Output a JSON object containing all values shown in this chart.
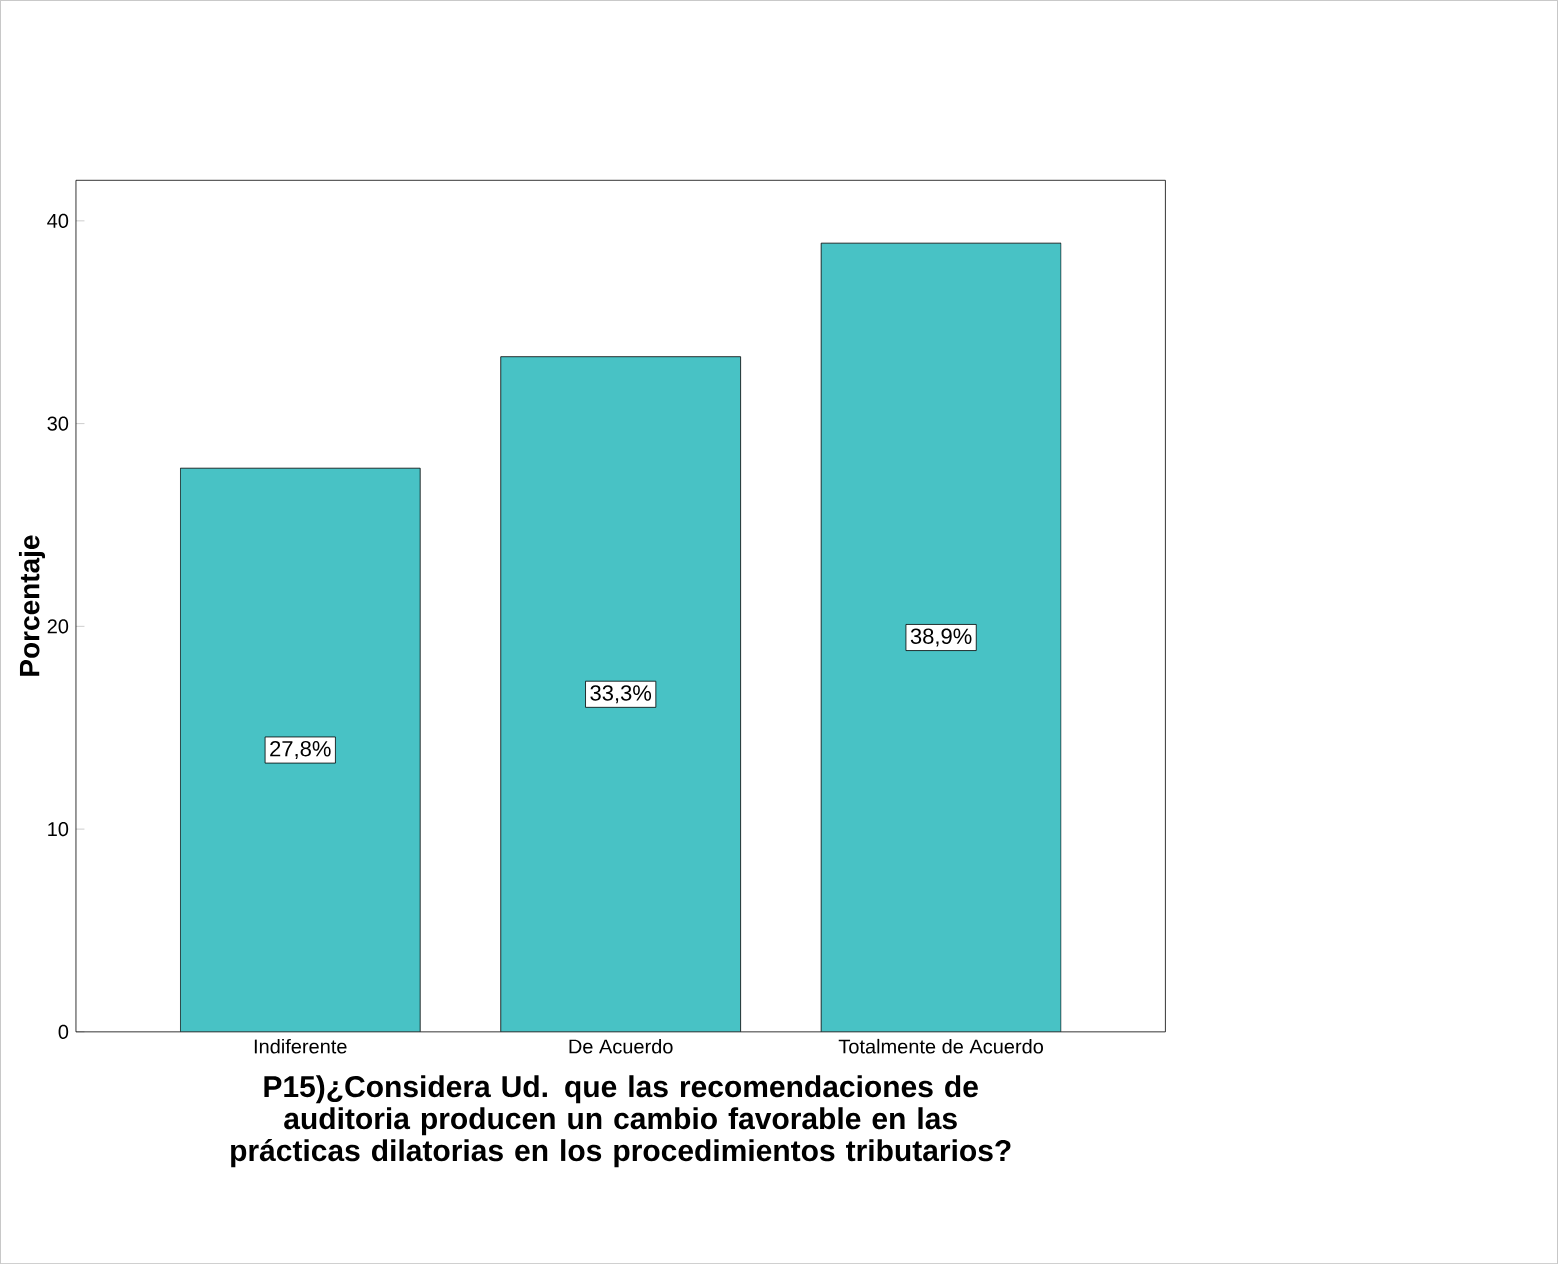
{
  "chart_data": {
    "type": "bar",
    "xlabel": "P15)¿Considera Ud. que las recomendaciones de auditoria producen un cambio favorable en las prácticas dilatorias en los procedimientos tributarios?",
    "ylabel": "Porcentaje",
    "categories": [
      "Indiferente",
      "De Acuerdo",
      "Totalmente de Acuerdo"
    ],
    "values": [
      27.8,
      33.3,
      38.9
    ],
    "value_labels": [
      "27,8%",
      "33,3%",
      "38,9%"
    ],
    "color": "#48c2c5",
    "ylim": [
      0,
      42
    ],
    "yticks": [
      0,
      10,
      20,
      30,
      40
    ],
    "grid": false
  }
}
